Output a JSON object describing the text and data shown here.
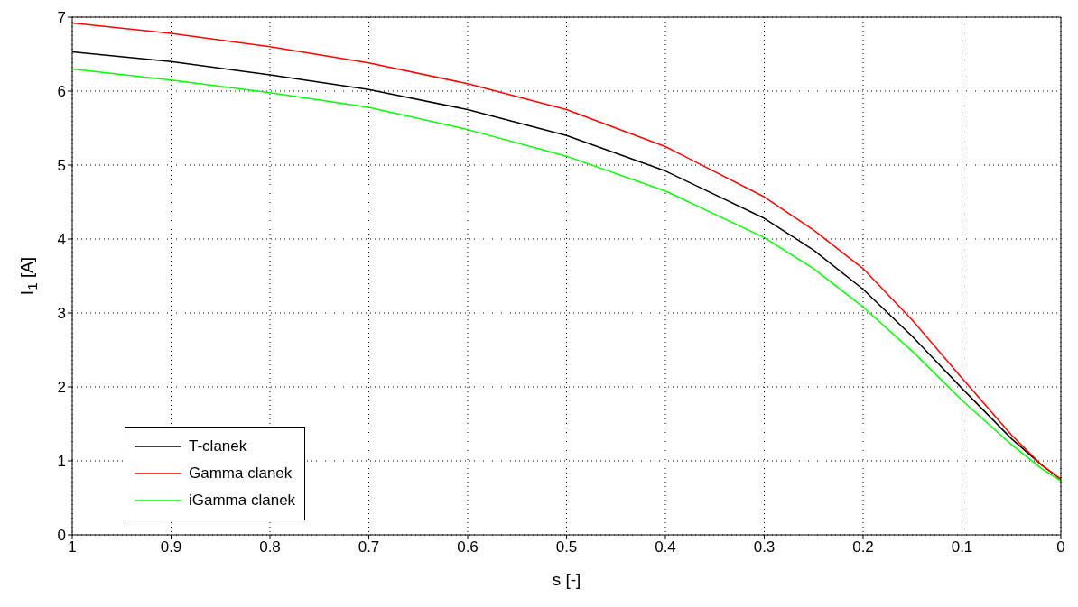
{
  "chart_data": {
    "type": "line",
    "xlabel": "s [-]",
    "ylabel": "I$_{1}$ [A]",
    "x": [
      1,
      0.9,
      0.8,
      0.7,
      0.6,
      0.5,
      0.4,
      0.3,
      0.25,
      0.2,
      0.15,
      0.1,
      0.05,
      0.02,
      0
    ],
    "series": [
      {
        "name": "T-clanek",
        "color": "#000000",
        "values": [
          6.53,
          6.4,
          6.22,
          6.02,
          5.75,
          5.4,
          4.92,
          4.28,
          3.85,
          3.32,
          2.68,
          1.98,
          1.3,
          0.95,
          0.75
        ]
      },
      {
        "name": "Gamma clanek",
        "color": "#ff0000",
        "values": [
          6.92,
          6.78,
          6.6,
          6.38,
          6.1,
          5.75,
          5.25,
          4.57,
          4.12,
          3.6,
          2.9,
          2.12,
          1.35,
          0.95,
          0.75
        ]
      },
      {
        "name": "iGamma clanek",
        "color": "#00ff00",
        "values": [
          6.3,
          6.15,
          5.98,
          5.78,
          5.48,
          5.12,
          4.65,
          4.02,
          3.6,
          3.08,
          2.48,
          1.82,
          1.22,
          0.9,
          0.73
        ]
      }
    ],
    "xlim": [
      1,
      0
    ],
    "xticks": [
      1,
      0.9,
      0.8,
      0.7,
      0.6,
      0.5,
      0.4,
      0.3,
      0.2,
      0.1,
      0
    ],
    "ylim": [
      0,
      7
    ],
    "yticks": [
      0,
      1,
      2,
      3,
      4,
      5,
      6,
      7
    ],
    "grid": true,
    "legend": "bottom left",
    "line_style": "solid",
    "marker": "none"
  }
}
